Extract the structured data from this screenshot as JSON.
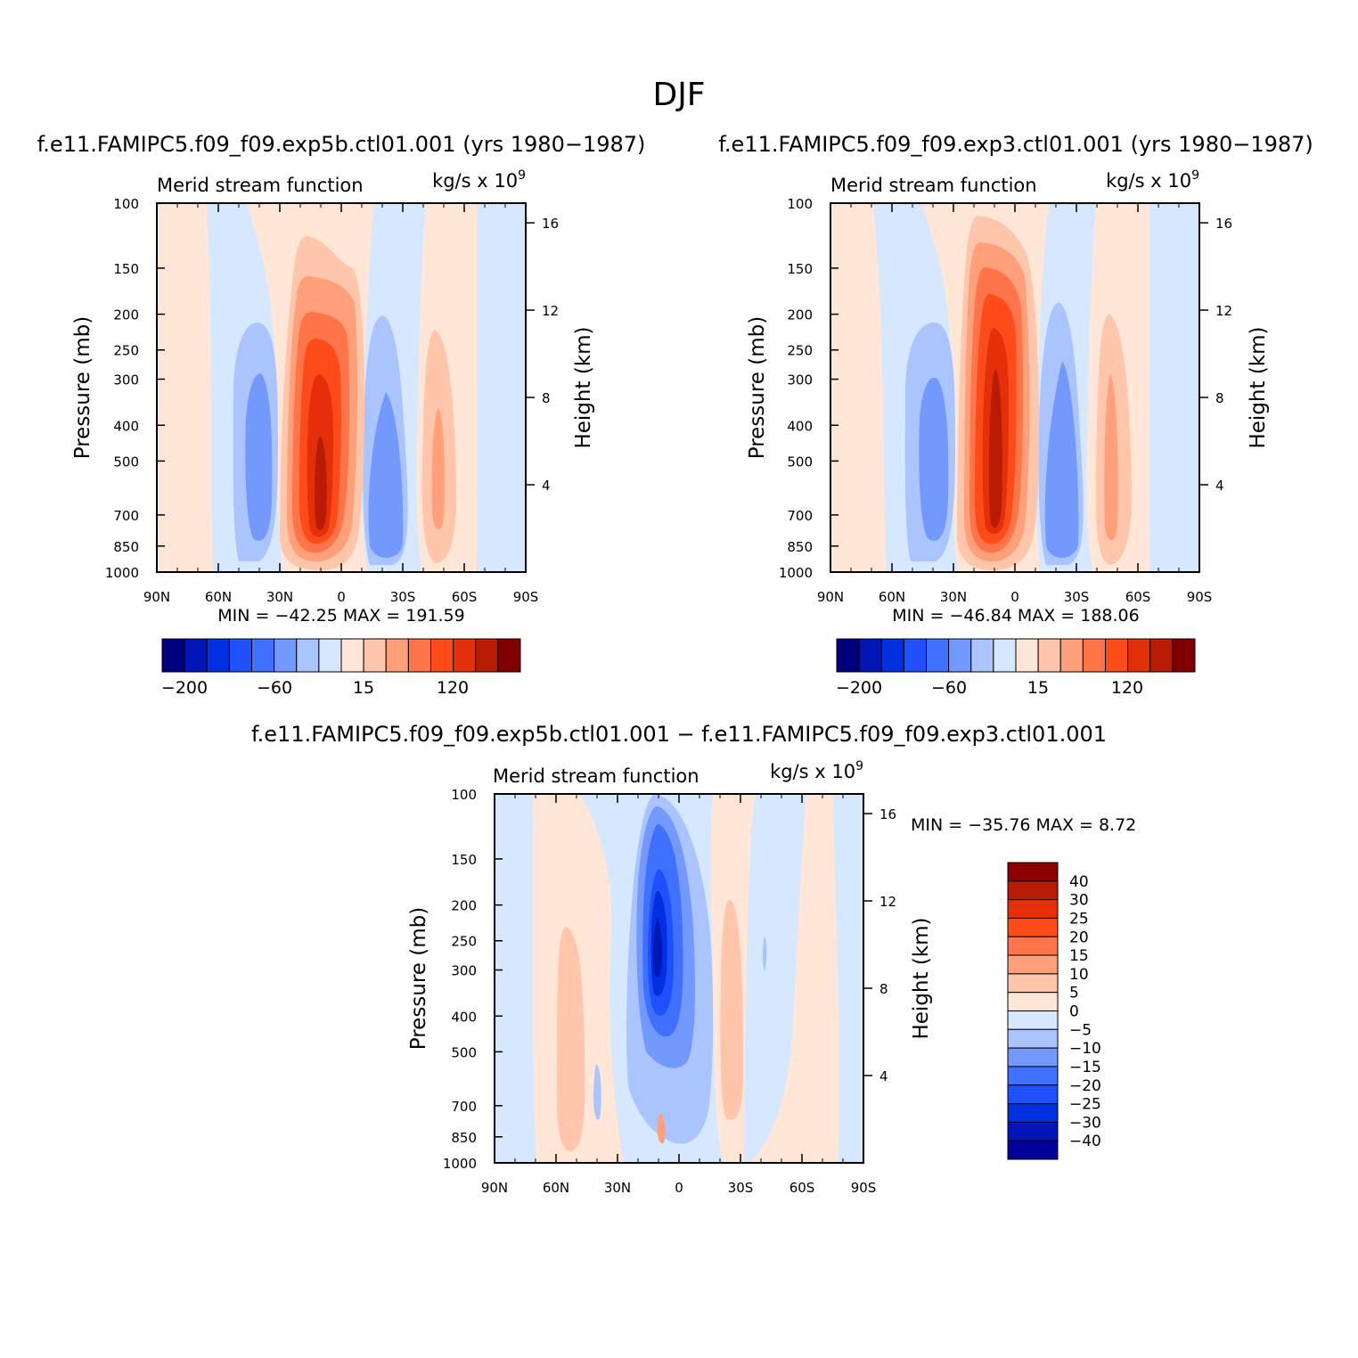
{
  "title": "DJF",
  "colors": {
    "abs_levels": [
      "#00007f",
      "#0016b6",
      "#0030e0",
      "#1f50ff",
      "#4070ff",
      "#7399ff",
      "#aac4ff",
      "#d6e8ff",
      "#ffe6d6",
      "#ffc6ac",
      "#ffa07a",
      "#ff7448",
      "#ff4a1a",
      "#e43008",
      "#b81c04",
      "#800000"
    ],
    "diff_levels": [
      "#00009b",
      "#0016b6",
      "#0030e0",
      "#1f50ff",
      "#4070ff",
      "#7399ff",
      "#aac4ff",
      "#d6e8ff",
      "#ffe6d6",
      "#ffc6ac",
      "#ffa07a",
      "#ff7448",
      "#ff4a1a",
      "#e43008",
      "#b81c04",
      "#8b0000"
    ]
  },
  "panels": [
    {
      "case_title": "f.e11.FAMIPC5.f09_f09.exp5b.ctl01.001 (yrs 1980−1987)",
      "left_title": "Merid stream function",
      "units": "kg/s x 10",
      "units_exp": "9",
      "ylabel": "Pressure (mb)",
      "y2label": "Height (km)",
      "stats": "MIN = −42.25   MAX = 191.59",
      "colorbar_labels": [
        "−200",
        "−60",
        "15",
        "120"
      ]
    },
    {
      "case_title": "f.e11.FAMIPC5.f09_f09.exp3.ctl01.001 (yrs 1980−1987)",
      "left_title": "Merid stream function",
      "units": "kg/s x 10",
      "units_exp": "9",
      "ylabel": "Pressure (mb)",
      "y2label": "Height (km)",
      "stats": "MIN = −46.84   MAX = 188.06",
      "colorbar_labels": [
        "−200",
        "−60",
        "15",
        "120"
      ]
    },
    {
      "case_title": "f.e11.FAMIPC5.f09_f09.exp5b.ctl01.001 − f.e11.FAMIPC5.f09_f09.exp3.ctl01.001",
      "left_title": "Merid stream function",
      "units": "kg/s x 10",
      "units_exp": "9",
      "ylabel": "Pressure (mb)",
      "y2label": "Height (km)",
      "stats": "MIN = −35.76   MAX =    8.72",
      "colorbar_labels": [
        "40",
        "30",
        "25",
        "20",
        "15",
        "10",
        "5",
        "0",
        "−5",
        "−10",
        "−15",
        "−20",
        "−25",
        "−30",
        "−40"
      ]
    }
  ],
  "chart_data": {
    "type": "heatmap",
    "x_ticks": [
      "90N",
      "60N",
      "30N",
      "0",
      "30S",
      "60S",
      "90S"
    ],
    "y_ticks": [
      "100",
      "150",
      "200",
      "250",
      "300",
      "400",
      "500",
      "700",
      "850",
      "1000"
    ],
    "y_tick_values": [
      100,
      150,
      200,
      250,
      300,
      400,
      500,
      700,
      850,
      1000
    ],
    "y2_ticks": [
      "16",
      "12",
      "8",
      "4"
    ],
    "y2_tick_values": [
      16,
      12,
      8,
      4
    ],
    "xlim": [
      90,
      -90
    ],
    "ylim": [
      1000,
      100
    ],
    "y_scale": "log",
    "cells": [
      {
        "panel": 0,
        "lat": -8,
        "lev": 650,
        "value": 191.59
      },
      {
        "panel": 0,
        "lat": 38,
        "lev": 500,
        "value": -42.25
      },
      {
        "panel": 1,
        "lat": -8,
        "lev": 600,
        "value": 188.06
      },
      {
        "panel": 1,
        "lat": 38,
        "lev": 500,
        "value": -46.84
      },
      {
        "panel": 2,
        "lat": 12,
        "lev": 250,
        "value": -35.76
      },
      {
        "panel": 2,
        "lat": 52,
        "lev": 450,
        "value": 8.72
      }
    ]
  }
}
